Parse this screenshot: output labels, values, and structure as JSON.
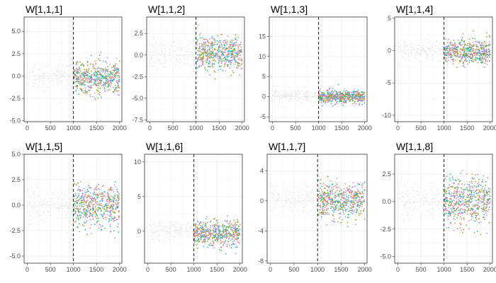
{
  "chart_data": [
    {
      "type": "scatter",
      "title": "W[1,1,1]",
      "xlim": [
        -70,
        2050
      ],
      "ylim": [
        -5.1,
        6.6
      ],
      "xticks": [
        0,
        500,
        1000,
        1500,
        2000
      ],
      "yticks": [
        -5.0,
        -2.5,
        0.0,
        2.5,
        5.0
      ],
      "ytick_labels": [
        "-5.0",
        "-2.5",
        "0.0",
        "2.5",
        "5.0"
      ],
      "warmup_end": 1000,
      "warmup": {
        "mean": 0.0,
        "sd": 0.75
      },
      "sampling": {
        "mean": -0.2,
        "sd": 0.9,
        "min": -3.3,
        "max": 4.3
      },
      "grid": true
    },
    {
      "type": "scatter",
      "title": "W[1,1,2]",
      "xlim": [
        -70,
        2050
      ],
      "ylim": [
        -7.7,
        4.4
      ],
      "xticks": [
        0,
        500,
        1000,
        1500,
        2000
      ],
      "yticks": [
        -7.5,
        -5.0,
        -2.5,
        0.0,
        2.5
      ],
      "ytick_labels": [
        "-7.5",
        "-5.0",
        "-2.5",
        "0.0",
        "2.5"
      ],
      "warmup_end": 1000,
      "warmup": {
        "mean": 0.1,
        "sd": 0.9
      },
      "sampling": {
        "mean": 0.2,
        "sd": 0.95,
        "min": -3.3,
        "max": 3.9
      },
      "grid": true
    },
    {
      "type": "scatter",
      "title": "W[1,1,3]",
      "xlim": [
        -70,
        2050
      ],
      "ylim": [
        -6.2,
        19.8
      ],
      "xticks": [
        0,
        500,
        1000,
        1500,
        2000
      ],
      "yticks": [
        -5,
        0,
        5,
        10,
        15
      ],
      "ytick_labels": [
        "-5",
        "0",
        "5",
        "10",
        "15"
      ],
      "warmup_end": 1000,
      "warmup": {
        "mean": 0.4,
        "sd": 0.8
      },
      "sampling": {
        "mean": 0.0,
        "sd": 0.8,
        "min": -2.4,
        "max": 3.0
      },
      "grid": true
    },
    {
      "type": "scatter",
      "title": "W[1,1,4]",
      "xlim": [
        -70,
        2050
      ],
      "ylim": [
        -11,
        5.2
      ],
      "xticks": [
        0,
        500,
        1000,
        1500,
        2000
      ],
      "yticks": [
        -10,
        -5,
        0,
        5
      ],
      "ytick_labels": [
        "-10",
        "-5",
        "0",
        "5"
      ],
      "warmup_end": 1000,
      "warmup": {
        "mean": 0.0,
        "sd": 0.8
      },
      "sampling": {
        "mean": -0.2,
        "sd": 0.9,
        "min": -2.6,
        "max": 4.3
      },
      "grid": true
    },
    {
      "type": "scatter",
      "title": "W[1,1,5]",
      "xlim": [
        -70,
        2050
      ],
      "ylim": [
        -5.7,
        5.0
      ],
      "xticks": [
        0,
        500,
        1000,
        1500,
        2000
      ],
      "yticks": [
        -5.0,
        -2.5,
        0.0,
        2.5,
        5.0
      ],
      "ytick_labels": [
        "-5.0",
        "-2.5",
        "0.0",
        "2.5",
        "5.0"
      ],
      "warmup_end": 1000,
      "warmup": {
        "mean": 0.0,
        "sd": 0.9
      },
      "sampling": {
        "mean": -0.1,
        "sd": 1.0,
        "min": -5.0,
        "max": 4.4
      },
      "grid": true
    },
    {
      "type": "scatter",
      "title": "W[1,1,6]",
      "xlim": [
        -70,
        2050
      ],
      "ylim": [
        -4.6,
        11.1
      ],
      "xticks": [
        0,
        500,
        1000,
        1500,
        2000
      ],
      "yticks": [
        0,
        5,
        10
      ],
      "ytick_labels": [
        "0",
        "5",
        "10"
      ],
      "warmup_end": 1000,
      "warmup": {
        "mean": 0.0,
        "sd": 0.8
      },
      "sampling": {
        "mean": -0.3,
        "sd": 0.9,
        "min": -3.6,
        "max": 3.2
      },
      "grid": true
    },
    {
      "type": "scatter",
      "title": "W[1,1,7]",
      "xlim": [
        -70,
        2050
      ],
      "ylim": [
        -8.3,
        6.2
      ],
      "xticks": [
        0,
        500,
        1000,
        1500,
        2000
      ],
      "yticks": [
        -8,
        -4,
        0,
        4
      ],
      "ytick_labels": [
        "-8",
        "-4",
        "0",
        "4"
      ],
      "warmup_end": 1000,
      "warmup": {
        "mean": 0.0,
        "sd": 0.9
      },
      "sampling": {
        "mean": 0.0,
        "sd": 1.1,
        "min": -4.2,
        "max": 4.2
      },
      "grid": true
    },
    {
      "type": "scatter",
      "title": "W[1,1,8]",
      "xlim": [
        -70,
        2050
      ],
      "ylim": [
        -5.6,
        4.3
      ],
      "xticks": [
        0,
        500,
        1000,
        1500,
        2000
      ],
      "yticks": [
        -5.0,
        -2.5,
        0.0,
        2.5
      ],
      "ytick_labels": [
        "-5.0",
        "-2.5",
        "0.0",
        "2.5"
      ],
      "warmup_end": 1000,
      "warmup": {
        "mean": 0.1,
        "sd": 0.85
      },
      "sampling": {
        "mean": 0.1,
        "sd": 1.0,
        "min": -3.3,
        "max": 3.5
      },
      "grid": true
    }
  ],
  "chains": [
    {
      "color": "#F8766D"
    },
    {
      "color": "#7CAE00"
    },
    {
      "color": "#00BFC4"
    },
    {
      "color": "#C77CFF"
    }
  ],
  "warmup_color": "#c9c9c9"
}
